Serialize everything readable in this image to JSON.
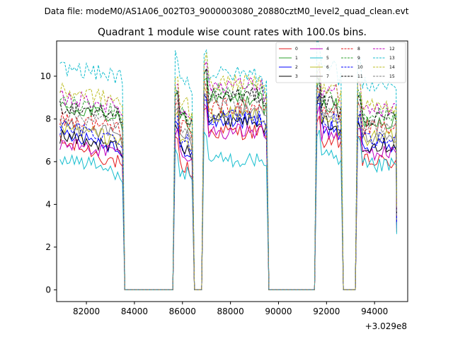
{
  "chart_data": {
    "type": "line",
    "suptitle": "Data file: modeM0/AS1A06_002T03_9000003080_20880cztM0_level2_quad_clean.evt",
    "title": "Quadrant 1 module wise count rates with 100.0s bins.",
    "xlabel": "",
    "ylabel": "",
    "x_offset_label": "+3.029e8",
    "xlim": [
      80760,
      95380
    ],
    "ylim": [
      -0.55,
      11.65
    ],
    "xticks": [
      {
        "value": 82000,
        "label": "82000"
      },
      {
        "value": 84000,
        "label": "84000"
      },
      {
        "value": 86000,
        "label": "86000"
      },
      {
        "value": 88000,
        "label": "88000"
      },
      {
        "value": 90000,
        "label": "90000"
      },
      {
        "value": 92000,
        "label": "92000"
      },
      {
        "value": 94000,
        "label": "94000"
      }
    ],
    "yticks": [
      {
        "value": 0,
        "label": "0"
      },
      {
        "value": 2,
        "label": "2"
      },
      {
        "value": 4,
        "label": "4"
      },
      {
        "value": 6,
        "label": "6"
      },
      {
        "value": 8,
        "label": "8"
      },
      {
        "value": 10,
        "label": "10"
      }
    ],
    "grid": false,
    "legend_position": "top-right",
    "legend_columns": 4,
    "active_segments": [
      {
        "start": 80900,
        "end": 83550
      },
      {
        "start": 85700,
        "end": 86420
      },
      {
        "start": 86900,
        "end": 89500
      },
      {
        "start": 91600,
        "end": 92620
      },
      {
        "start": 93300,
        "end": 94900
      }
    ],
    "bin_seconds": 100,
    "series": [
      {
        "name": "0",
        "color": "#e41a1c",
        "dash": "solid",
        "levels": [
          6.9,
          6.4,
          5.8,
          7.4,
          7.0,
          6.0
        ]
      },
      {
        "name": "1",
        "color": "#2ca02c",
        "dash": "solid",
        "levels": [
          8.5,
          8.3,
          8.0,
          8.9,
          8.6,
          7.9
        ]
      },
      {
        "name": "2",
        "color": "#0000ff",
        "dash": "solid",
        "levels": [
          7.4,
          7.0,
          6.6,
          7.9,
          7.6,
          6.7
        ]
      },
      {
        "name": "3",
        "color": "#000000",
        "dash": "solid",
        "levels": [
          7.2,
          6.9,
          6.6,
          8.0,
          7.8,
          6.8
        ]
      },
      {
        "name": "4",
        "color": "#bf00bf",
        "dash": "solid",
        "levels": [
          6.8,
          6.6,
          6.4,
          7.4,
          7.3,
          6.4
        ]
      },
      {
        "name": "5",
        "color": "#17becf",
        "dash": "solid",
        "levels": [
          6.2,
          5.8,
          5.4,
          6.1,
          6.2,
          5.8
        ]
      },
      {
        "name": "6",
        "color": "#bcbd22",
        "dash": "solid",
        "levels": [
          7.6,
          7.3,
          7.0,
          8.2,
          7.9,
          7.1
        ]
      },
      {
        "name": "7",
        "color": "#7f7f7f",
        "dash": "solid",
        "levels": [
          7.8,
          7.5,
          7.2,
          8.3,
          8.0,
          7.2
        ]
      },
      {
        "name": "8",
        "color": "#e41a1c",
        "dash": "dashed",
        "levels": [
          8.0,
          7.8,
          7.6,
          8.6,
          8.4,
          7.6
        ]
      },
      {
        "name": "9",
        "color": "#2ca02c",
        "dash": "dashed",
        "levels": [
          8.8,
          8.6,
          8.3,
          9.3,
          9.0,
          8.2
        ]
      },
      {
        "name": "10",
        "color": "#0000ff",
        "dash": "dashed",
        "levels": [
          7.6,
          7.3,
          7.0,
          8.1,
          7.9,
          7.0
        ]
      },
      {
        "name": "11",
        "color": "#000000",
        "dash": "dashed",
        "levels": [
          8.6,
          8.4,
          8.1,
          9.1,
          8.8,
          8.0
        ]
      },
      {
        "name": "12",
        "color": "#bf00bf",
        "dash": "dashed",
        "levels": [
          9.0,
          8.8,
          8.5,
          9.6,
          9.3,
          8.4
        ]
      },
      {
        "name": "13",
        "color": "#17becf",
        "dash": "dashed",
        "levels": [
          10.4,
          10.2,
          9.9,
          10.1,
          10.6,
          9.6
        ]
      },
      {
        "name": "14",
        "color": "#bcbd22",
        "dash": "dashed",
        "levels": [
          9.3,
          9.1,
          8.8,
          9.7,
          9.4,
          8.6
        ]
      },
      {
        "name": "15",
        "color": "#7f7f7f",
        "dash": "dashed",
        "levels": [
          8.2,
          8.0,
          7.7,
          8.8,
          8.5,
          7.7
        ]
      }
    ]
  }
}
